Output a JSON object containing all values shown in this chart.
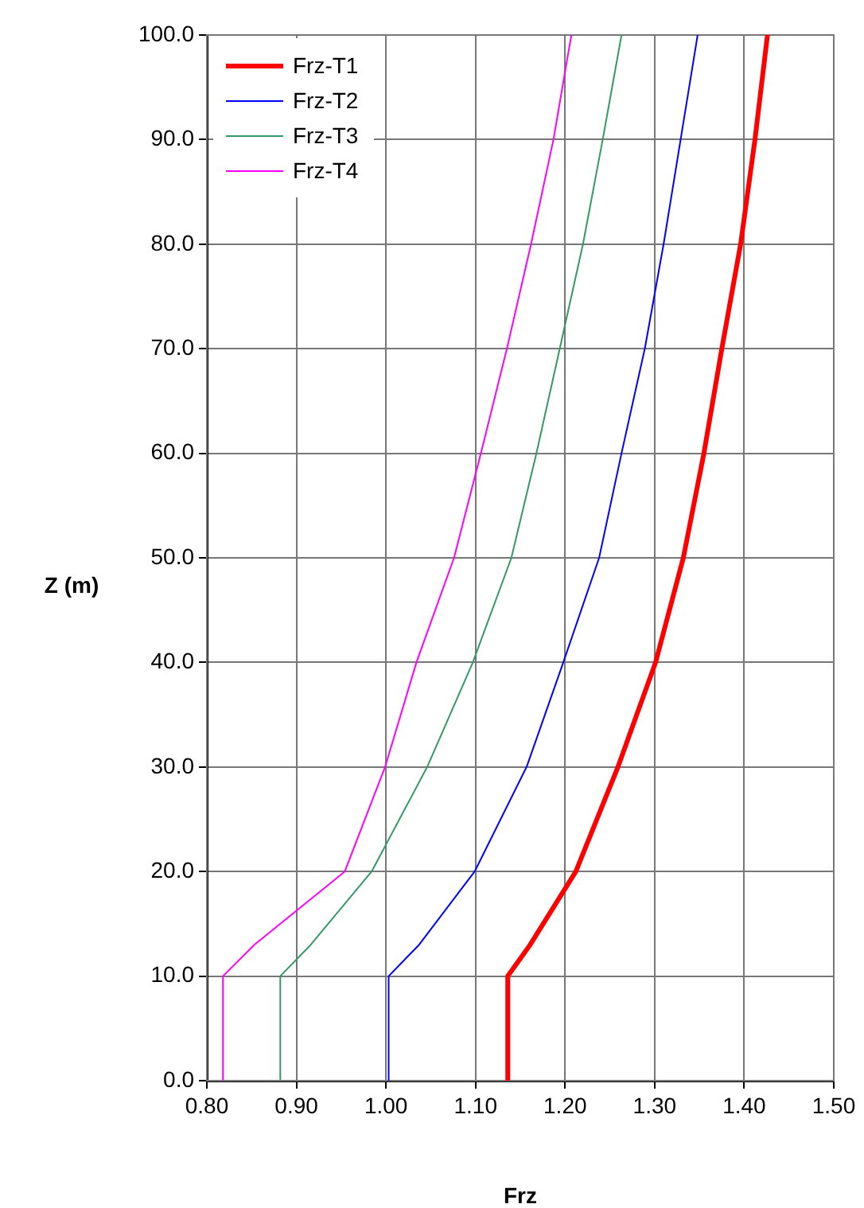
{
  "chart_data": {
    "type": "line",
    "xlabel": "Frz",
    "ylabel": "Z (m)",
    "series": [
      {
        "name": "Frz-T1",
        "color": "#ff0000",
        "x": [
          1.136,
          1.136,
          1.161,
          1.212,
          1.259,
          1.301,
          1.332,
          1.355,
          1.375,
          1.396,
          1.412,
          1.426
        ],
        "values": [
          0,
          10,
          13,
          20,
          30,
          40,
          50,
          60,
          70,
          80,
          90,
          100
        ]
      },
      {
        "name": "Frz-T2",
        "color": "#0000ff",
        "x": [
          1.003,
          1.003,
          1.037,
          1.099,
          1.157,
          1.198,
          1.238,
          1.263,
          1.289,
          1.31,
          1.329,
          1.348
        ],
        "values": [
          0,
          10,
          13,
          20,
          30,
          40,
          50,
          60,
          70,
          80,
          90,
          100
        ]
      },
      {
        "name": "Frz-T3",
        "color": "#339966",
        "x": [
          0.882,
          0.882,
          0.916,
          0.984,
          1.046,
          1.097,
          1.14,
          1.168,
          1.194,
          1.22,
          1.242,
          1.263
        ],
        "values": [
          0,
          10,
          13,
          20,
          30,
          40,
          50,
          60,
          70,
          80,
          90,
          100
        ]
      },
      {
        "name": "Frz-T4",
        "color": "#ff00ff",
        "x": [
          0.818,
          0.818,
          0.853,
          0.954,
          0.999,
          1.034,
          1.076,
          1.106,
          1.135,
          1.162,
          1.187,
          1.207
        ],
        "values": [
          0,
          10,
          13,
          20,
          30,
          40,
          50,
          60,
          70,
          80,
          90,
          100
        ]
      }
    ],
    "xlim": [
      0.8,
      1.5
    ],
    "xticks": [
      {
        "value": 0.8,
        "label": "0.80"
      },
      {
        "value": 0.9,
        "label": "0.90"
      },
      {
        "value": 1.0,
        "label": "1.00"
      },
      {
        "value": 1.1,
        "label": "1.10"
      },
      {
        "value": 1.2,
        "label": "1.20"
      },
      {
        "value": 1.3,
        "label": "1.30"
      },
      {
        "value": 1.4,
        "label": "1.40"
      },
      {
        "value": 1.5,
        "label": "1.50"
      }
    ],
    "ylim": [
      0,
      100
    ],
    "yticks": [
      {
        "value": 0,
        "label": "0.0"
      },
      {
        "value": 10,
        "label": "10.0"
      },
      {
        "value": 20,
        "label": "20.0"
      },
      {
        "value": 30,
        "label": "30.0"
      },
      {
        "value": 40,
        "label": "40.0"
      },
      {
        "value": 50,
        "label": "50.0"
      },
      {
        "value": 60,
        "label": "60.0"
      },
      {
        "value": 70,
        "label": "70.0"
      },
      {
        "value": 80,
        "label": "80.0"
      },
      {
        "value": 90,
        "label": "90.0"
      },
      {
        "value": 100,
        "label": "100.0"
      }
    ],
    "grid": true,
    "legend": "top left",
    "marker": "none",
    "line_style": "solid"
  }
}
